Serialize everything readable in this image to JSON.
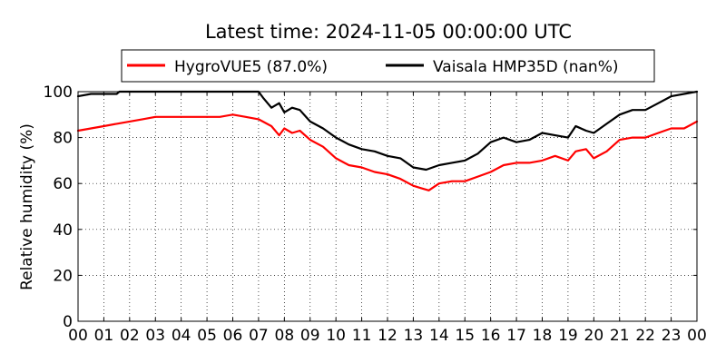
{
  "chart_data": {
    "type": "line",
    "title": "Latest time: 2024-11-05 00:00:00 UTC",
    "xlabel": "",
    "ylabel": "Relative humidity (%)",
    "xlim": [
      0,
      24
    ],
    "ylim": [
      0,
      100
    ],
    "x_ticks": [
      "00",
      "01",
      "02",
      "03",
      "04",
      "05",
      "06",
      "07",
      "08",
      "09",
      "10",
      "11",
      "12",
      "13",
      "14",
      "15",
      "16",
      "17",
      "18",
      "19",
      "20",
      "21",
      "22",
      "23",
      "00"
    ],
    "y_ticks": [
      0,
      20,
      40,
      60,
      80,
      100
    ],
    "grid": true,
    "legend_position": "top-center",
    "series": [
      {
        "name": "HygroVUE5 (87.0%)",
        "color": "#ff0000",
        "x": [
          0,
          0.5,
          1,
          1.5,
          2,
          2.5,
          3,
          3.5,
          4,
          4.5,
          5,
          5.5,
          6,
          6.5,
          7,
          7.5,
          7.8,
          8,
          8.3,
          8.6,
          9,
          9.5,
          10,
          10.5,
          11,
          11.5,
          12,
          12.5,
          13,
          13.3,
          13.6,
          14,
          14.5,
          15,
          15.5,
          16,
          16.5,
          17,
          17.5,
          18,
          18.5,
          19,
          19.3,
          19.7,
          20,
          20.5,
          21,
          21.5,
          22,
          22.5,
          23,
          23.5,
          24
        ],
        "values": [
          83,
          84,
          85,
          86,
          87,
          88,
          89,
          89,
          89,
          89,
          89,
          89,
          90,
          89,
          88,
          85,
          81,
          84,
          82,
          83,
          79,
          76,
          71,
          68,
          67,
          65,
          64,
          62,
          59,
          58,
          57,
          60,
          61,
          61,
          63,
          65,
          68,
          69,
          69,
          70,
          72,
          70,
          74,
          75,
          71,
          74,
          79,
          80,
          80,
          82,
          84,
          84,
          87
        ]
      },
      {
        "name": "Vaisala HMP35D (nan%)",
        "color": "#000000",
        "x": [
          0,
          0.5,
          1,
          1.5,
          1.6,
          7,
          7.2,
          7.5,
          7.8,
          8,
          8.3,
          8.6,
          9,
          9.5,
          10,
          10.5,
          11,
          11.5,
          12,
          12.5,
          13,
          13.5,
          14,
          14.5,
          15,
          15.5,
          16,
          16.5,
          17,
          17.5,
          18,
          18.5,
          19,
          19.3,
          19.7,
          20,
          20.5,
          21,
          21.5,
          22,
          22.5,
          23,
          23.5,
          24
        ],
        "values": [
          98,
          99,
          99,
          99,
          100,
          100,
          97,
          93,
          95,
          91,
          93,
          92,
          87,
          84,
          80,
          77,
          75,
          74,
          72,
          71,
          67,
          66,
          68,
          69,
          70,
          73,
          78,
          80,
          78,
          79,
          82,
          81,
          80,
          85,
          83,
          82,
          86,
          90,
          92,
          92,
          95,
          98,
          99,
          100
        ]
      }
    ]
  }
}
